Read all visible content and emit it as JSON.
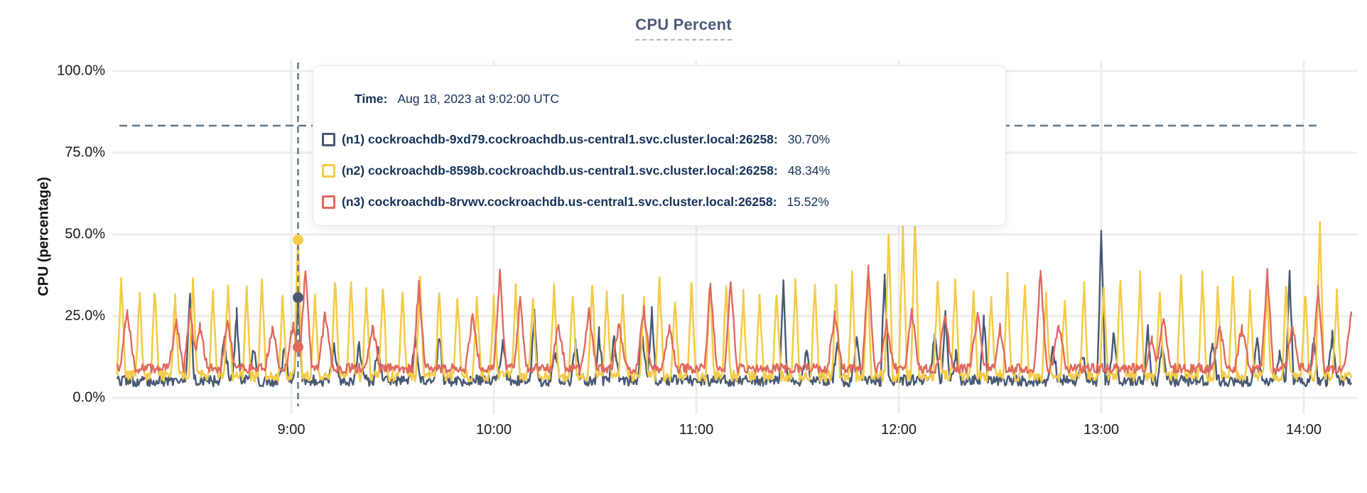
{
  "accent_colors": {
    "n1": "#475872",
    "n2": "#F4CB49",
    "n3": "#E0695E",
    "guide_dash": "#5F7789",
    "grid": "#ECECEC",
    "text_navy": "#16325A"
  },
  "tooltip": {
    "time_label": "Time:",
    "time_value": "Aug 18, 2023 at 9:02:00 UTC",
    "rows": [
      {
        "id": "n1",
        "color": "#475872",
        "label": "(n1) cockroachdb-9xd79.cockroachdb.us-central1.svc.cluster.local:26258:",
        "value": "30.70%"
      },
      {
        "id": "n2",
        "color": "#F4CB49",
        "label": "(n2) cockroachdb-8598b.cockroachdb.us-central1.svc.cluster.local:26258:",
        "value": "48.34%"
      },
      {
        "id": "n3",
        "color": "#E0695E",
        "label": "(n3) cockroachdb-8rvwv.cockroachdb.us-central1.svc.cluster.local:26258:",
        "value": "15.52%"
      }
    ]
  },
  "chart_data": {
    "type": "line",
    "title": "CPU Percent",
    "ylabel": "CPU (percentage)",
    "y_ticks": [
      {
        "v": 0,
        "label": "0.0%"
      },
      {
        "v": 25,
        "label": "25.0%"
      },
      {
        "v": 50,
        "label": "50.0%"
      },
      {
        "v": 75,
        "label": "75.0%"
      },
      {
        "v": 100,
        "label": "100.0%"
      }
    ],
    "x_ticks": [
      {
        "h": 9,
        "label": "9:00"
      },
      {
        "h": 10,
        "label": "10:00"
      },
      {
        "h": 11,
        "label": "11:00"
      },
      {
        "h": 12,
        "label": "12:00"
      },
      {
        "h": 13,
        "label": "13:00"
      },
      {
        "h": 14,
        "label": "14:00"
      }
    ],
    "ylim": [
      0,
      100
    ],
    "x_range_hours": [
      8.14,
      14.24
    ],
    "grid": true,
    "threshold_percent": 83.3,
    "hover": {
      "time_hours": 9.0333,
      "time_text": "Aug 18, 2023 at 9:02:00 UTC",
      "values": {
        "n1": 30.7,
        "n2": 48.34,
        "n3": 15.52
      }
    },
    "series": [
      {
        "id": "n1",
        "name": "cockroachdb-9xd79.cockroachdb.us-central1.svc.cluster.local:26258",
        "color": "#475872",
        "width": 2.4,
        "baseline": [
          3.5,
          7
        ],
        "spike_width_h": 0.02,
        "minor": {
          "period_h": 0.12,
          "height": [
            8,
            15
          ],
          "prob": 0.55
        },
        "peaks": [
          [
            8.5,
            32
          ],
          [
            8.73,
            26
          ],
          [
            9.0333,
            30.7
          ],
          [
            10.2,
            26
          ],
          [
            10.52,
            20
          ],
          [
            10.78,
            27
          ],
          [
            11.43,
            35
          ],
          [
            11.93,
            38
          ],
          [
            12.23,
            25
          ],
          [
            12.42,
            24
          ],
          [
            13.0,
            51
          ],
          [
            13.23,
            21
          ],
          [
            13.93,
            38
          ],
          [
            14.05,
            18
          ]
        ]
      },
      {
        "id": "n2",
        "name": "cockroachdb-8598b.cockroachdb.us-central1.svc.cluster.local:26258",
        "color": "#F4CB49",
        "width": 2.6,
        "baseline": [
          5,
          8.5
        ],
        "spike_width_h": 0.02,
        "periodic": {
          "period_h": 0.09,
          "height": [
            23,
            31
          ]
        },
        "peaks": [
          [
            9.0333,
            48.34
          ],
          [
            10.0,
            30
          ],
          [
            11.95,
            50
          ],
          [
            12.02,
            52
          ],
          [
            12.08,
            55
          ],
          [
            13.65,
            38
          ],
          [
            14.08,
            54
          ]
        ]
      },
      {
        "id": "n3",
        "name": "cockroachdb-8rvwv.cockroachdb.us-central1.svc.cluster.local:26258",
        "color": "#E0695E",
        "width": 2.4,
        "baseline": [
          7.5,
          10.5
        ],
        "spike_width_h": 0.03,
        "minor": {
          "period_h": 0.13,
          "height": [
            12,
            18
          ],
          "prob": 0.6
        },
        "peaks": [
          [
            8.5,
            28
          ],
          [
            9.07,
            40
          ],
          [
            9.63,
            35
          ],
          [
            10.03,
            38
          ],
          [
            10.13,
            30
          ],
          [
            11.07,
            35
          ],
          [
            11.17,
            36
          ],
          [
            11.85,
            40
          ],
          [
            12.5,
            22
          ],
          [
            12.7,
            39
          ],
          [
            13.25,
            18
          ],
          [
            13.82,
            38
          ],
          [
            14.07,
            33
          ]
        ]
      }
    ]
  }
}
